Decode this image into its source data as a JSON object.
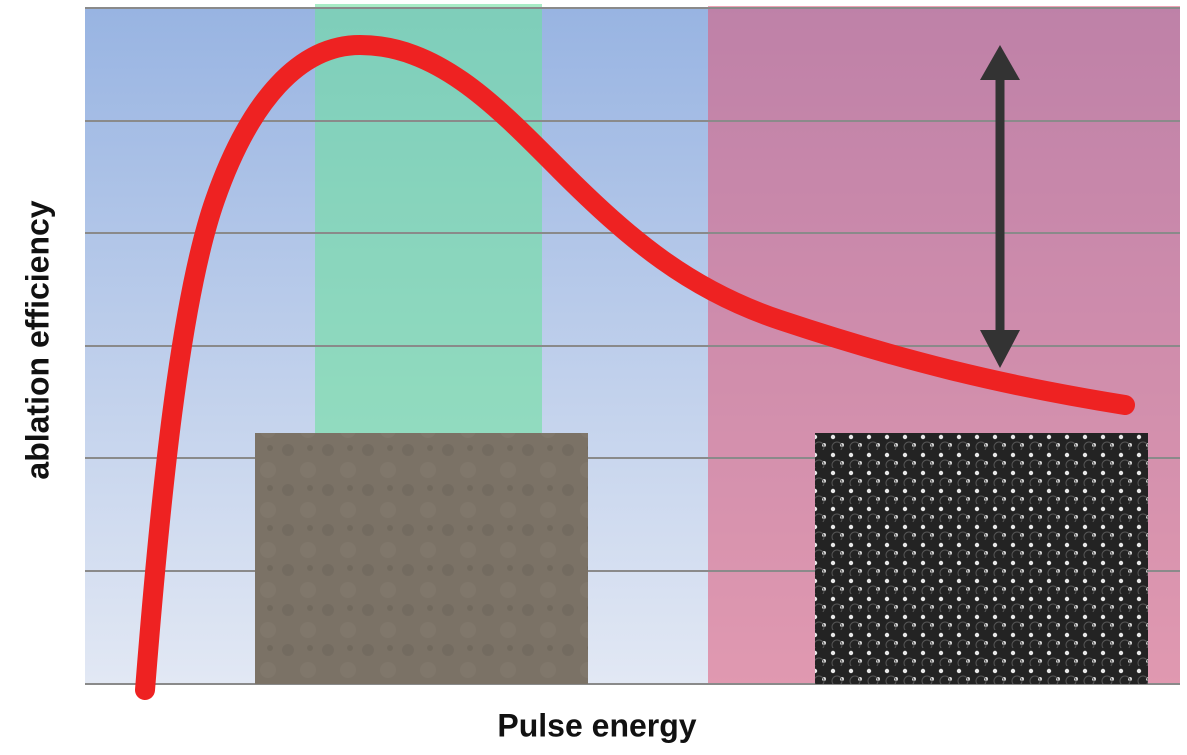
{
  "axes": {
    "x_label": "Pulse energy",
    "y_label": "ablation efficiency"
  }
}
